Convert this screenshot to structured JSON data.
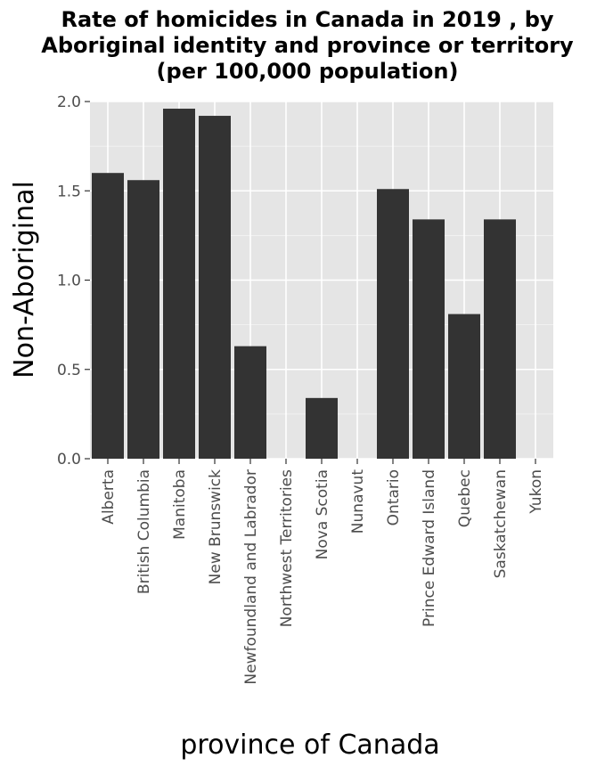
{
  "chart_data": {
    "type": "bar",
    "title_lines": [
      "Rate of homicides in Canada in 2019 , by",
      "Aboriginal identity and province or territory",
      "(per 100,000 population)"
    ],
    "xlabel": "province of Canada",
    "ylabel": "Non-Aboriginal",
    "categories": [
      "Alberta",
      "British Columbia",
      "Manitoba",
      "New Brunswick",
      "Newfoundland and Labrador",
      "Northwest Territories",
      "Nova Scotia",
      "Nunavut",
      "Ontario",
      "Prince Edward Island",
      "Quebec",
      "Saskatchewan",
      "Yukon"
    ],
    "values": [
      1.6,
      1.56,
      1.96,
      1.92,
      0.63,
      0,
      0.34,
      0,
      1.51,
      1.34,
      0.81,
      1.34,
      0
    ],
    "ylim": [
      0,
      2.0
    ],
    "yticks": [
      "0.0",
      "0.5",
      "1.0",
      "1.5",
      "2.0"
    ],
    "ytick_values": [
      0,
      0.5,
      1.0,
      1.5,
      2.0
    ],
    "grid": true,
    "colors": {
      "bar": "#333333",
      "panel": "#e5e5e5",
      "grid": "#ffffff",
      "tick_label": "#4d4d4d",
      "tick": "#333333"
    }
  }
}
